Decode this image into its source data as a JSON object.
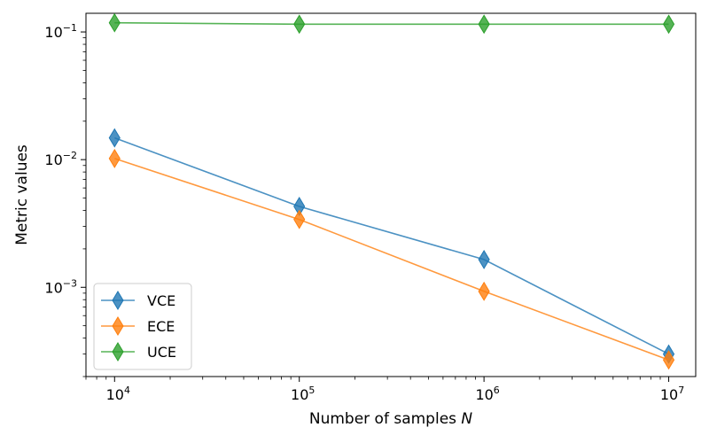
{
  "chart_data": {
    "type": "line",
    "title": "",
    "xlabel": "Number of samples",
    "xlabel_var": "N",
    "ylabel": "Metric values",
    "x_scale": "log",
    "y_scale": "log",
    "x": [
      10000,
      100000,
      1000000,
      10000000
    ],
    "x_tick_labels": [
      {
        "base": "10",
        "exp": "4"
      },
      {
        "base": "10",
        "exp": "5"
      },
      {
        "base": "10",
        "exp": "6"
      },
      {
        "base": "10",
        "exp": "7"
      }
    ],
    "y_tick_labels": [
      {
        "value": 0.001,
        "base": "10",
        "exp": "−3"
      },
      {
        "value": 0.01,
        "base": "10",
        "exp": "−2"
      },
      {
        "value": 0.1,
        "base": "10",
        "exp": "−1"
      }
    ],
    "xlim": [
      7000,
      14000000
    ],
    "ylim": [
      0.0002,
      0.14
    ],
    "grid": false,
    "legend_position": "lower-left",
    "marker": "thin-diamond",
    "series": [
      {
        "name": "VCE",
        "color": "#1f77b4",
        "values": [
          0.0148,
          0.0043,
          0.00165,
          0.0003
        ]
      },
      {
        "name": "ECE",
        "color": "#ff7f0e",
        "values": [
          0.0102,
          0.0034,
          0.00093,
          0.00027
        ]
      },
      {
        "name": "UCE",
        "color": "#2ca02c",
        "values": [
          0.118,
          0.115,
          0.115,
          0.115
        ]
      }
    ]
  }
}
